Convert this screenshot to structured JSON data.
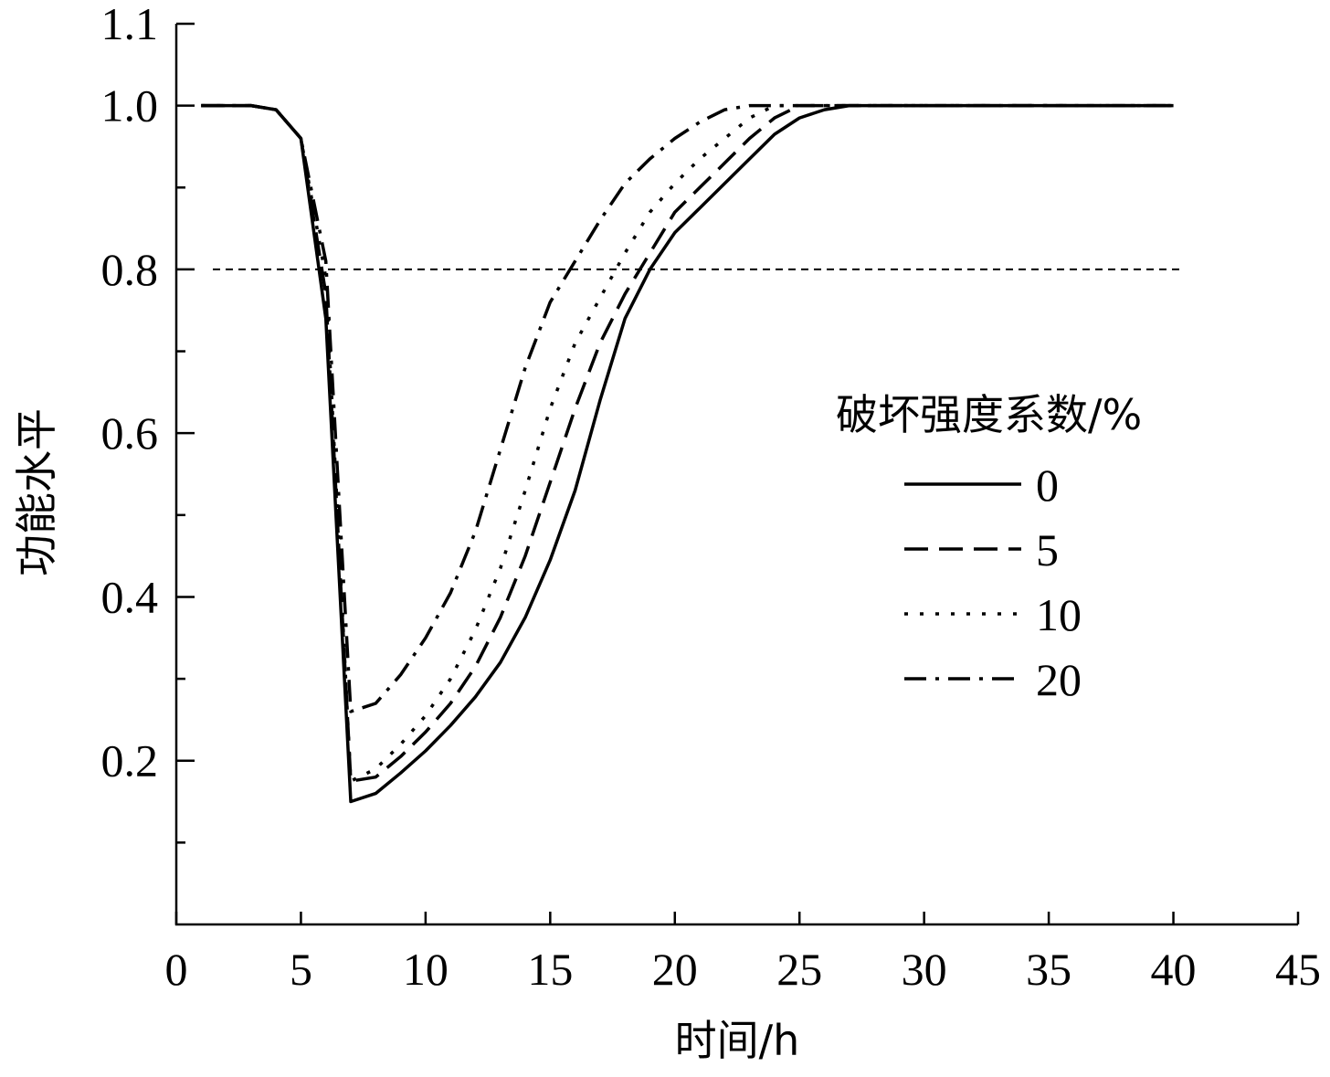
{
  "chart_data": {
    "type": "line",
    "title": "",
    "xlabel": "时间/h",
    "ylabel": "功能水平",
    "xlim": [
      0,
      45
    ],
    "ylim": [
      0,
      1.1
    ],
    "xticks": [
      0,
      5,
      10,
      15,
      20,
      25,
      30,
      35,
      40,
      45
    ],
    "yticks_labeled": [
      0.2,
      0.4,
      0.6,
      0.8,
      1.0,
      1.1
    ],
    "yticks_minor": [
      0.1,
      0.3,
      0.5,
      0.7,
      0.9
    ],
    "grid": false,
    "legend": {
      "title": "破坏强度系数/%",
      "placement": "right-middle"
    },
    "reference_line": {
      "y": 0.8,
      "style": "short-dash"
    },
    "series": [
      {
        "name": "0",
        "style": "solid",
        "x": [
          1,
          3,
          4,
          5,
          6,
          7,
          8,
          9,
          10,
          11,
          12,
          13,
          14,
          15,
          16,
          17,
          18,
          19,
          20,
          21,
          22,
          23,
          24,
          25,
          26,
          27,
          28,
          30,
          35,
          40
        ],
        "y": [
          1.0,
          1.0,
          0.995,
          0.96,
          0.74,
          0.15,
          0.16,
          0.185,
          0.212,
          0.243,
          0.278,
          0.32,
          0.375,
          0.445,
          0.53,
          0.64,
          0.74,
          0.8,
          0.845,
          0.875,
          0.905,
          0.935,
          0.965,
          0.985,
          0.995,
          1.0,
          1.0,
          1.0,
          1.0,
          1.0
        ]
      },
      {
        "name": "5",
        "style": "dashed",
        "x": [
          1,
          3,
          4,
          5,
          6,
          7,
          8,
          9,
          10,
          11,
          12,
          13,
          14,
          15,
          16,
          17,
          18,
          19,
          20,
          21,
          22,
          23,
          24,
          25,
          26,
          27,
          28,
          30,
          40
        ],
        "y": [
          1.0,
          1.0,
          0.995,
          0.96,
          0.77,
          0.175,
          0.18,
          0.205,
          0.235,
          0.27,
          0.315,
          0.375,
          0.45,
          0.54,
          0.63,
          0.71,
          0.77,
          0.82,
          0.87,
          0.9,
          0.93,
          0.96,
          0.985,
          1.0,
          1.0,
          1.0,
          1.0,
          1.0,
          1.0
        ]
      },
      {
        "name": "10",
        "style": "dotted",
        "x": [
          1,
          3,
          4,
          5,
          6,
          7,
          8,
          9,
          10,
          11,
          12,
          13,
          14,
          15,
          16,
          17,
          18,
          19,
          20,
          21,
          22,
          23,
          24,
          25,
          26,
          28,
          30,
          40
        ],
        "y": [
          1.0,
          1.0,
          0.995,
          0.96,
          0.79,
          0.175,
          0.19,
          0.22,
          0.255,
          0.3,
          0.36,
          0.435,
          0.53,
          0.63,
          0.71,
          0.765,
          0.82,
          0.87,
          0.905,
          0.935,
          0.96,
          0.985,
          1.0,
          1.0,
          1.0,
          1.0,
          1.0,
          1.0
        ]
      },
      {
        "name": "20",
        "style": "dash-dot",
        "x": [
          1,
          3,
          4,
          5,
          6,
          7,
          8,
          9,
          10,
          11,
          12,
          13,
          14,
          15,
          16,
          17,
          18,
          19,
          20,
          21,
          22,
          23,
          24,
          25,
          26,
          28,
          30,
          40
        ],
        "y": [
          1.0,
          1.0,
          0.995,
          0.96,
          0.81,
          0.26,
          0.27,
          0.305,
          0.35,
          0.405,
          0.48,
          0.58,
          0.68,
          0.76,
          0.81,
          0.86,
          0.905,
          0.935,
          0.96,
          0.98,
          0.995,
          1.0,
          1.0,
          1.0,
          1.0,
          1.0,
          1.0,
          1.0
        ]
      }
    ]
  }
}
